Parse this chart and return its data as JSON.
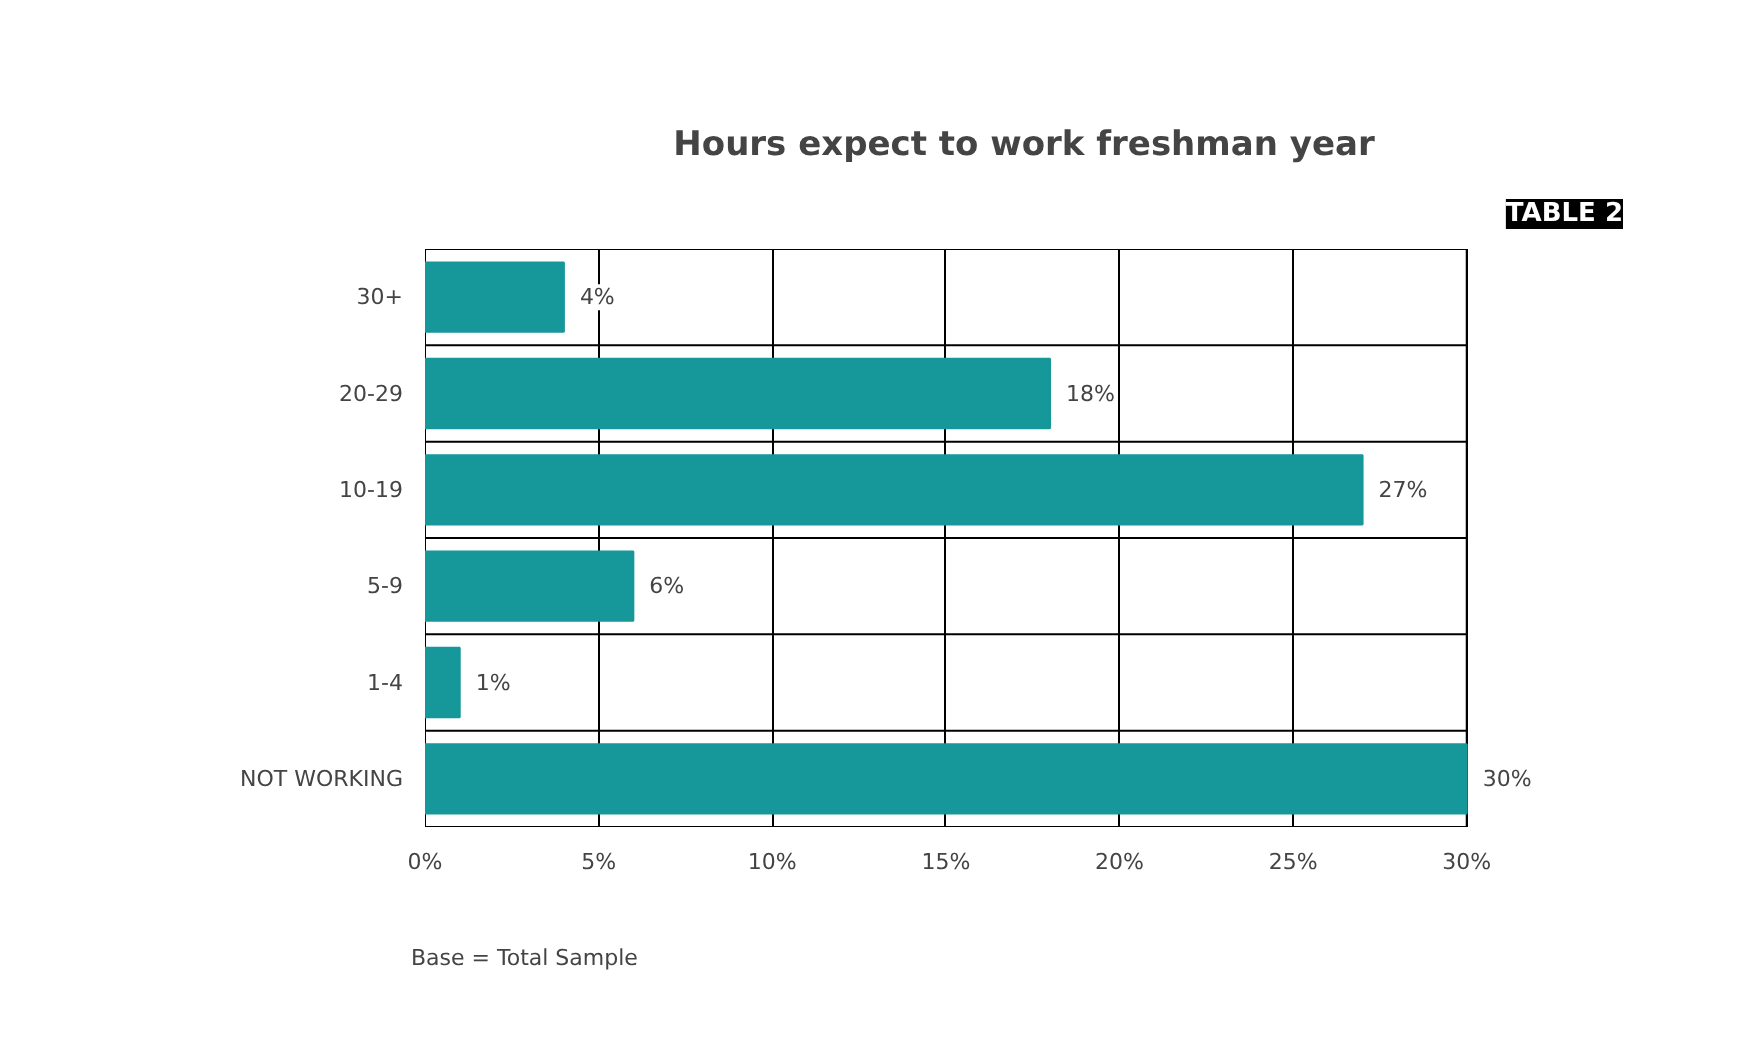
{
  "chart_data": {
    "type": "bar",
    "orientation": "horizontal",
    "title": "Hours expect to work freshman year",
    "categories": [
      "30+",
      "20-29",
      "10-19",
      "5-9",
      "1-4",
      "NOT WORKING"
    ],
    "values": [
      4,
      18,
      27,
      6,
      1,
      30
    ],
    "value_labels": [
      "4%",
      "18%",
      "27%",
      "6%",
      "1%",
      "30%"
    ],
    "color": "#16979a",
    "xlim": [
      0,
      30
    ],
    "xticks": [
      {
        "value": 0,
        "label": "0%"
      },
      {
        "value": 5,
        "label": "5%"
      },
      {
        "value": 10,
        "label": "10%"
      },
      {
        "value": 15,
        "label": "15%"
      },
      {
        "value": 20,
        "label": "20%"
      },
      {
        "value": 25,
        "label": "25%"
      },
      {
        "value": 30,
        "label": "30%"
      }
    ],
    "grid": true,
    "annotations": [
      "TABLE 2",
      "Base = Total Sample"
    ]
  }
}
